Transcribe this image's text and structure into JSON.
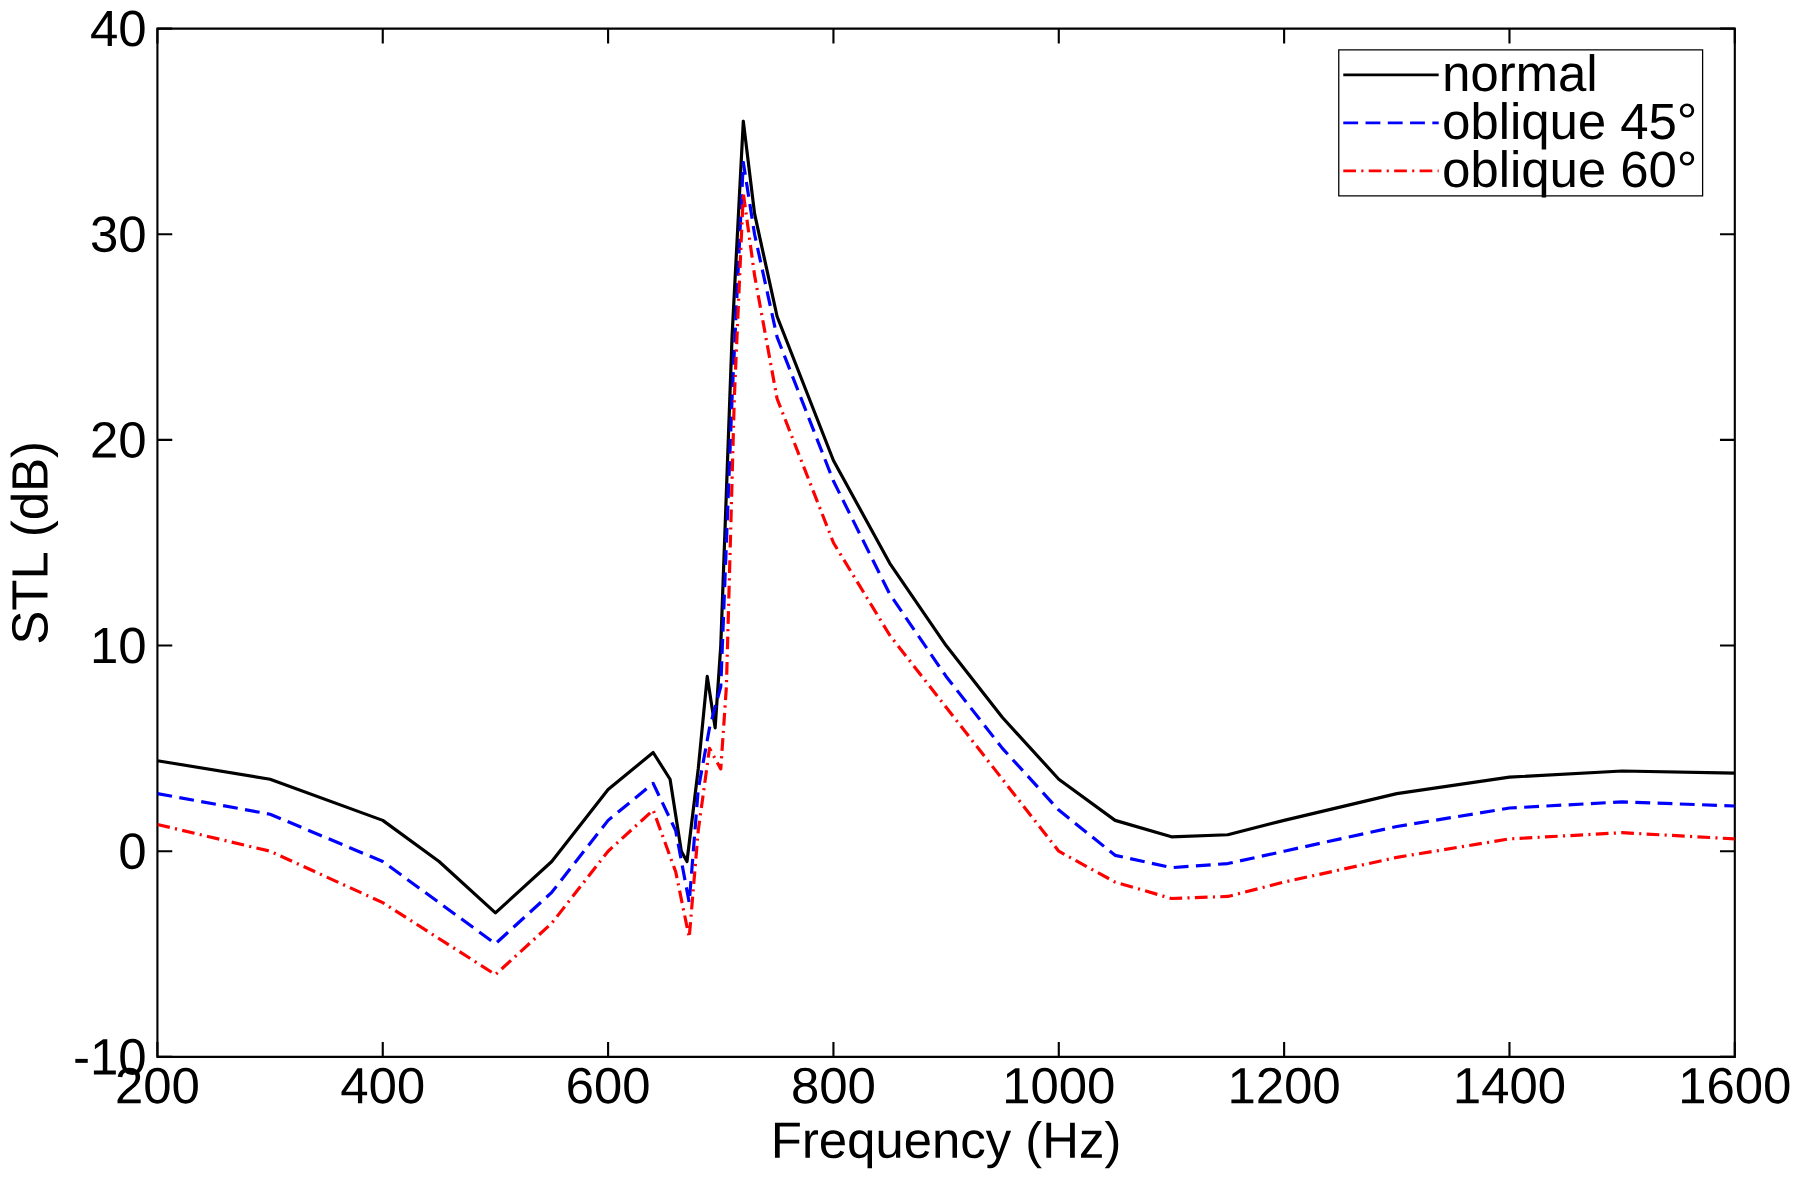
{
  "chart_data": {
    "type": "line",
    "xlabel": "Frequency (Hz)",
    "ylabel": "STL (dB)",
    "xlim": [
      200,
      1600
    ],
    "ylim": [
      -10,
      40
    ],
    "xticks": [
      200,
      400,
      600,
      800,
      1000,
      1200,
      1400,
      1600
    ],
    "yticks": [
      -10,
      0,
      10,
      20,
      30,
      40
    ],
    "grid": false,
    "legend": "top right",
    "marker": "none",
    "series": [
      {
        "name": "normal",
        "color": "#000000",
        "line_style": "solid",
        "x": [
          200,
          300,
          400,
          450,
          500,
          550,
          600,
          640,
          655,
          665,
          670,
          680,
          688,
          695,
          700,
          710,
          720,
          730,
          750,
          800,
          850,
          900,
          950,
          1000,
          1050,
          1100,
          1150,
          1200,
          1300,
          1400,
          1500,
          1600
        ],
        "values": [
          4.4,
          3.5,
          1.5,
          -0.5,
          -3,
          -0.5,
          3,
          4.8,
          3.5,
          0,
          -0.5,
          4,
          8.5,
          6,
          10,
          25,
          35.5,
          31,
          26,
          19,
          14,
          10,
          6.5,
          3.5,
          1.5,
          0.7,
          0.8,
          1.5,
          2.8,
          3.6,
          3.9,
          3.8
        ]
      },
      {
        "name": "oblique 45°",
        "color": "#0000ff",
        "line_style": "dashed",
        "x": [
          200,
          300,
          400,
          500,
          550,
          600,
          640,
          660,
          672,
          680,
          690,
          700,
          710,
          720,
          730,
          750,
          800,
          850,
          900,
          950,
          1000,
          1050,
          1100,
          1150,
          1200,
          1300,
          1400,
          1500,
          1600
        ],
        "values": [
          2.8,
          1.8,
          -0.5,
          -4.5,
          -2,
          1.5,
          3.3,
          1,
          -2.5,
          3,
          6,
          8,
          22,
          33.5,
          30,
          25,
          18,
          12.5,
          8.5,
          5,
          2,
          -0.2,
          -0.8,
          -0.6,
          0,
          1.2,
          2.1,
          2.4,
          2.2
        ]
      },
      {
        "name": "oblique 60°",
        "color": "#ff0000",
        "line_style": "dashdotted",
        "x": [
          200,
          300,
          400,
          500,
          550,
          600,
          640,
          660,
          672,
          680,
          690,
          700,
          705,
          712,
          720,
          730,
          750,
          800,
          850,
          900,
          950,
          1000,
          1050,
          1100,
          1150,
          1200,
          1300,
          1400,
          1500,
          1600
        ],
        "values": [
          1.3,
          0,
          -2.5,
          -6,
          -3.5,
          0,
          2,
          -1,
          -4.2,
          1,
          5,
          4,
          8,
          22,
          32,
          28,
          22,
          15,
          10.5,
          7,
          3.5,
          0,
          -1.5,
          -2.3,
          -2.2,
          -1.5,
          -0.3,
          0.6,
          0.9,
          0.6
        ]
      }
    ]
  }
}
